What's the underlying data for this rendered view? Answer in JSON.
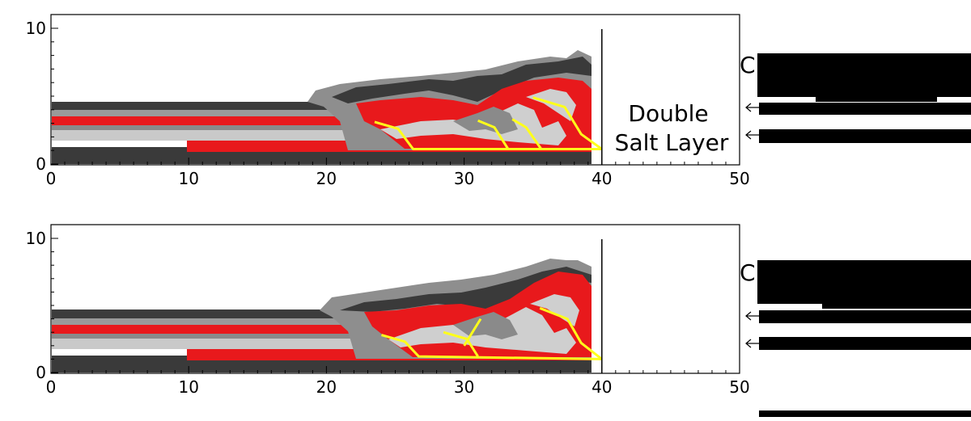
{
  "chart_data": [
    {
      "type": "diagram",
      "x_ticks": [
        "0",
        "10",
        "20",
        "30",
        "40",
        "50"
      ],
      "y_ticks": [
        "0",
        "10"
      ],
      "xlim": [
        0,
        50
      ],
      "ylim": [
        0,
        10
      ],
      "wall_x": 40,
      "annotation": [
        "Double",
        "Salt Layer"
      ],
      "faults": [
        [
          [
            23.5,
            3.1
          ],
          [
            25.2,
            2.6
          ],
          [
            26.3,
            1.1
          ],
          [
            40.0,
            1.1
          ]
        ],
        [
          [
            31.0,
            3.2
          ],
          [
            32.2,
            2.7
          ],
          [
            33.2,
            1.1
          ]
        ],
        [
          [
            33.5,
            3.3
          ],
          [
            34.5,
            2.7
          ],
          [
            35.6,
            1.1
          ]
        ],
        [
          [
            35.0,
            4.9
          ],
          [
            37.3,
            4.2
          ],
          [
            38.5,
            2.2
          ],
          [
            40.0,
            1.1
          ]
        ]
      ]
    },
    {
      "type": "diagram",
      "x_ticks": [
        "0",
        "10",
        "20",
        "30",
        "40",
        "50"
      ],
      "y_ticks": [
        "0",
        "10"
      ],
      "xlim": [
        0,
        50
      ],
      "ylim": [
        0,
        10
      ],
      "wall_x": 40,
      "faults": [
        [
          [
            24.0,
            2.8
          ],
          [
            25.7,
            2.3
          ],
          [
            26.7,
            1.2
          ],
          [
            40.0,
            1.0
          ]
        ],
        [
          [
            28.5,
            3.0
          ],
          [
            30.2,
            2.5
          ],
          [
            31.0,
            1.2
          ]
        ],
        [
          [
            30.0,
            2.0
          ],
          [
            31.2,
            4.0
          ]
        ],
        [
          [
            35.5,
            4.8
          ],
          [
            37.5,
            4.0
          ],
          [
            38.5,
            2.2
          ],
          [
            40.0,
            1.0
          ]
        ]
      ]
    }
  ],
  "side_labels": [
    "C",
    "C"
  ]
}
